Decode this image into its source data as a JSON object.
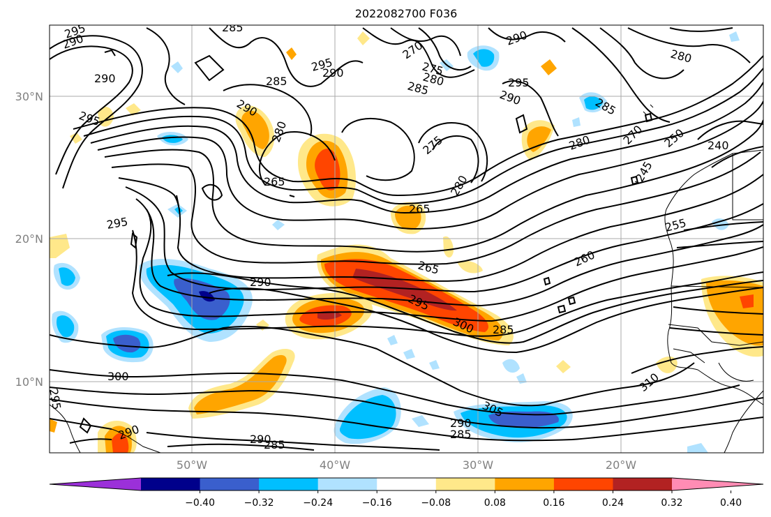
{
  "title": "2022082700 F036",
  "map": {
    "lon_labels": [
      "50°W",
      "40°W",
      "30°W",
      "20°W"
    ],
    "lat_labels": [
      "30°N",
      "20°N",
      "10°N"
    ],
    "grid": true,
    "region": {
      "lon_min": -60,
      "lon_max": -10,
      "lat_min": 5,
      "lat_max": 35
    }
  },
  "colorbar": {
    "ticks": [
      "−0.40",
      "−0.32",
      "−0.24",
      "−0.16",
      "−0.08",
      "0.08",
      "0.16",
      "0.24",
      "0.32",
      "0.40"
    ],
    "colors": [
      "#9b30d9",
      "#00008b",
      "#3a5fcd",
      "#00bfff",
      "#b0e2ff",
      "#ffffff",
      "#ffe88a",
      "#ffa500",
      "#ff4500",
      "#b22222",
      "#ff8cb4"
    ],
    "extend": "both"
  },
  "contour_labels": [
    "295",
    "290",
    "285",
    "290",
    "295",
    "290",
    "285",
    "270",
    "275",
    "280",
    "285",
    "290",
    "290",
    "295",
    "280",
    "285",
    "295",
    "290",
    "280",
    "275",
    "280",
    "270",
    "250",
    "240",
    "280",
    "265",
    "265",
    "245",
    "295",
    "255",
    "260",
    "265",
    "290",
    "295",
    "300",
    "285",
    "300",
    "310",
    "295",
    "305",
    "290",
    "285",
    "290",
    "285",
    "290"
  ]
}
